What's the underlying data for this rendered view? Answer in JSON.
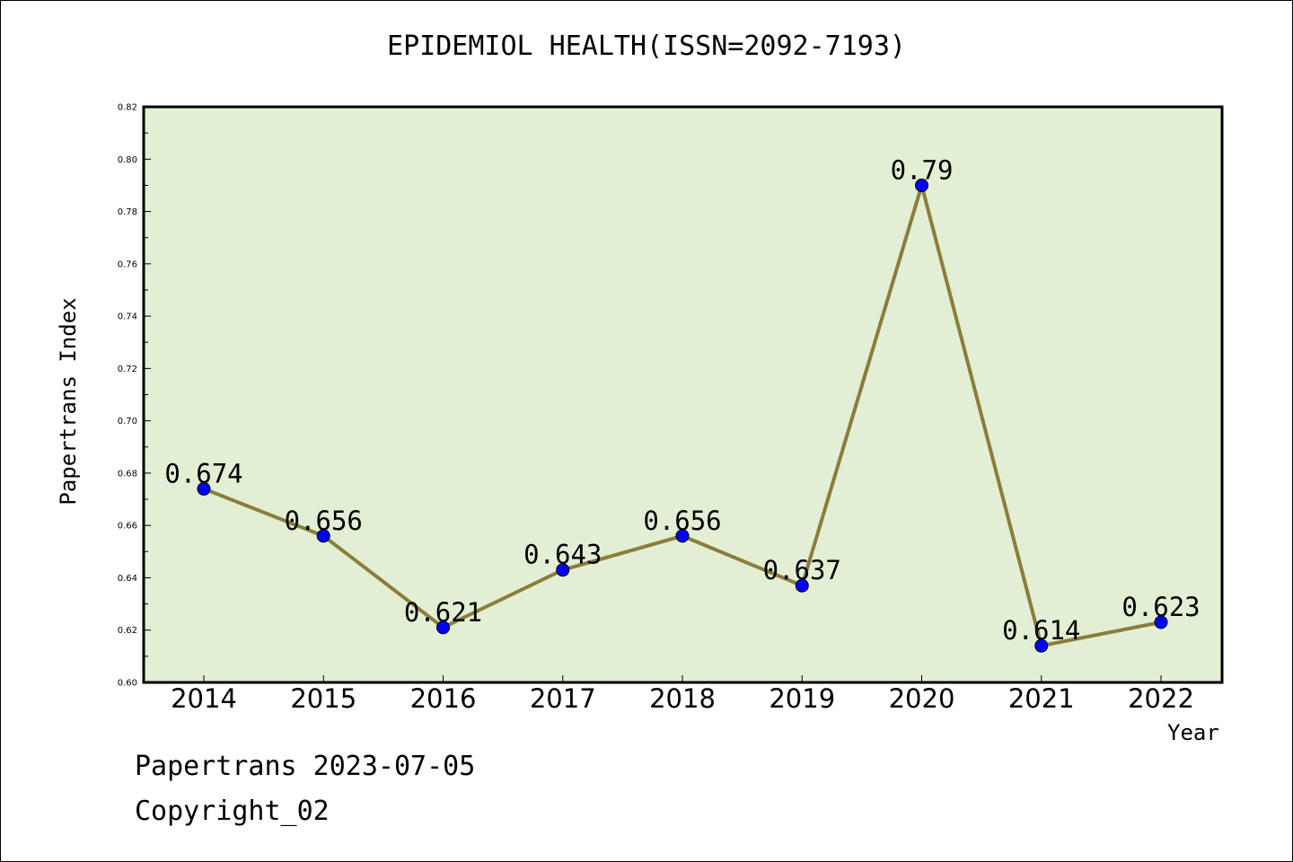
{
  "chart_data": {
    "type": "line",
    "title": "EPIDEMIOL HEALTH(ISSN=2092-7193)",
    "xlabel": "Year",
    "ylabel": "Papertrans Index",
    "categories": [
      "2014",
      "2015",
      "2016",
      "2017",
      "2018",
      "2019",
      "2020",
      "2021",
      "2022"
    ],
    "values": [
      0.674,
      0.656,
      0.621,
      0.643,
      0.656,
      0.637,
      0.79,
      0.614,
      0.623
    ],
    "data_labels": [
      "0.674",
      "0.656",
      "0.621",
      "0.643",
      "0.656",
      "0.637",
      "0.79",
      "0.614",
      "0.623"
    ],
    "ylim": [
      0.6,
      0.82
    ],
    "yticks": [
      "0.60",
      "0.62",
      "0.64",
      "0.66",
      "0.68",
      "0.70",
      "0.72",
      "0.74",
      "0.76",
      "0.78",
      "0.80",
      "0.82"
    ],
    "grid": false,
    "colors": {
      "plot_background": "#e2efd5",
      "line": "#8b7d3a",
      "marker": "#0000ff"
    }
  },
  "footer": {
    "date": "Papertrans 2023-07-05",
    "copyright": "Copyright_02"
  }
}
